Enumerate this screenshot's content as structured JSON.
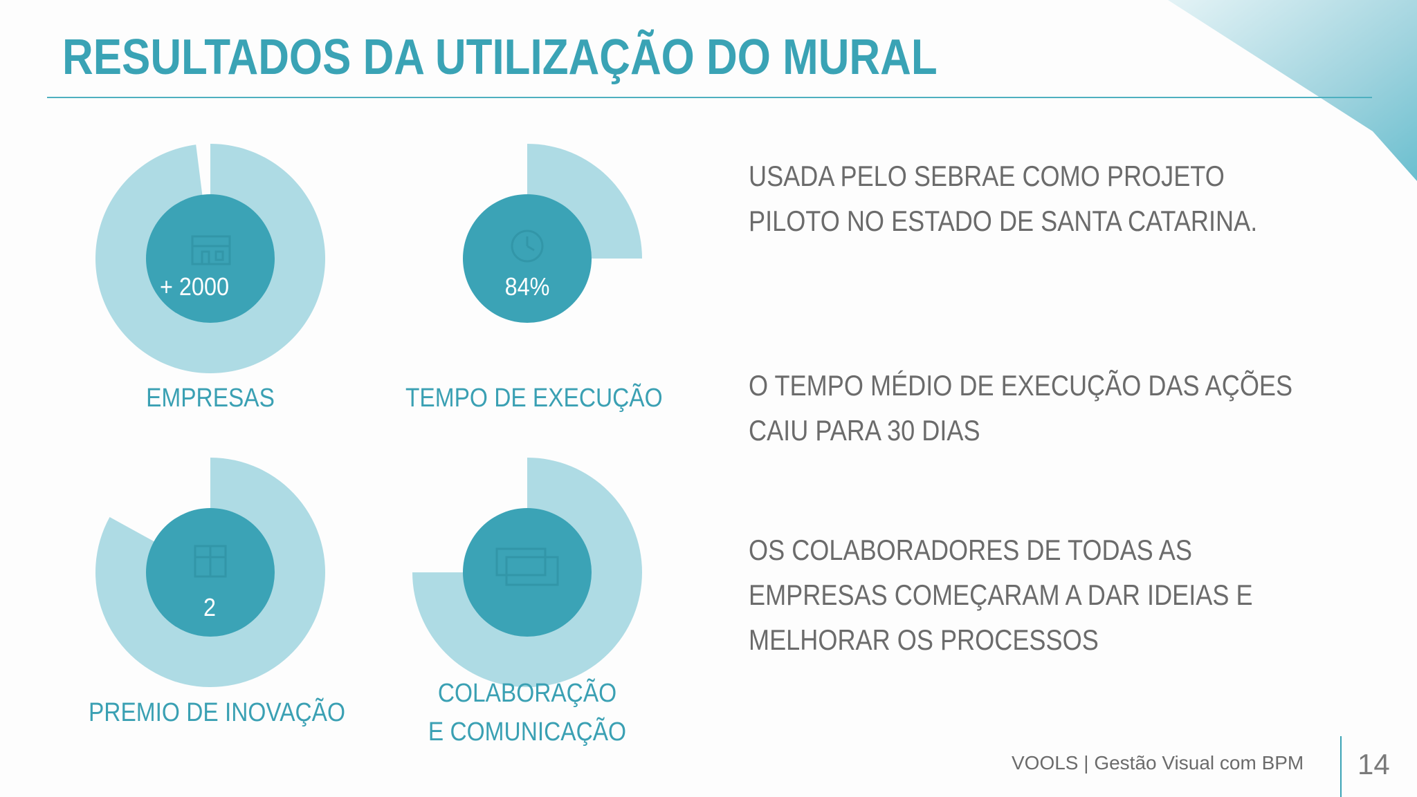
{
  "slide": {
    "title": "RESULTADOS DA UTILIZAÇÃO DO MURAL",
    "colors": {
      "accent": "#3aa3b5",
      "ring_light": "#aedbe4",
      "ring_inner": "#3ba3b6",
      "text_gray": "#6b6b6b"
    }
  },
  "metrics": [
    {
      "label": "EMPRESAS",
      "value": "+ 2000",
      "icon": "building-icon",
      "fill_percent": 98
    },
    {
      "label": "TEMPO DE EXECUÇÃO",
      "value": "84%",
      "icon": "clock-icon",
      "fill_percent": 25
    },
    {
      "label": "PREMIO DE INOVAÇÃO",
      "value": "2",
      "icon": "trophy-icon",
      "fill_percent": 83
    },
    {
      "label_line1": "COLABORAÇÃO",
      "label_line2": "E COMUNICAÇÃO",
      "value": "",
      "icon": "chat-icon",
      "fill_percent": 75
    }
  ],
  "statements": [
    {
      "line1": "USADA PELO SEBRAE COMO PROJETO",
      "line2": "PILOTO NO ESTADO DE SANTA CATARINA."
    },
    {
      "line1": "O TEMPO MÉDIO DE EXECUÇÃO DAS AÇÕES",
      "line2": "CAIU PARA 30 DIAS"
    },
    {
      "line1": "OS COLABORADORES DE TODAS AS",
      "line2": "EMPRESAS COMEÇARAM A DAR IDEIAS E",
      "line3": "MELHORAR OS PROCESSOS"
    }
  ],
  "footer": {
    "brand": "VOOLS  | Gestão Visual com BPM",
    "page_number": "14"
  }
}
